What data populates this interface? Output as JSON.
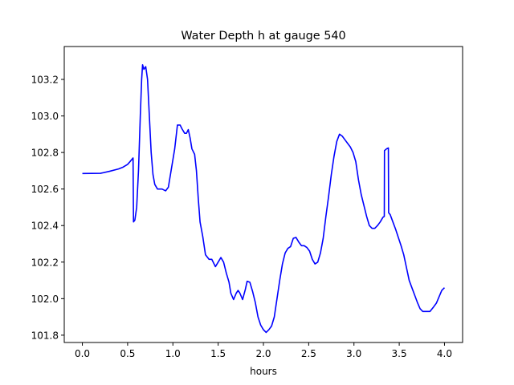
{
  "chart_data": {
    "type": "line",
    "title": "Water Depth h at gauge 540",
    "xlabel": "hours",
    "ylabel": "",
    "xlim": [
      -0.2,
      4.2
    ],
    "ylim": [
      101.76,
      103.38
    ],
    "grid": false,
    "xticks": [
      0.0,
      0.5,
      1.0,
      1.5,
      2.0,
      2.5,
      3.0,
      3.5,
      4.0
    ],
    "xtick_labels": [
      "0.0",
      "0.5",
      "1.0",
      "1.5",
      "2.0",
      "2.5",
      "3.0",
      "3.5",
      "4.0"
    ],
    "yticks": [
      101.8,
      102.0,
      102.2,
      102.4,
      102.6,
      102.8,
      103.0,
      103.2
    ],
    "ytick_labels": [
      "101.8",
      "102.0",
      "102.2",
      "102.4",
      "102.6",
      "102.8",
      "103.0",
      "103.2"
    ],
    "line_color": "#0000ff",
    "series": [
      {
        "points": [
          [
            0.0,
            102.685
          ],
          [
            0.2,
            102.686
          ],
          [
            0.3,
            102.697
          ],
          [
            0.4,
            102.71
          ],
          [
            0.45,
            102.72
          ],
          [
            0.5,
            102.735
          ],
          [
            0.53,
            102.752
          ],
          [
            0.56,
            102.77
          ],
          [
            0.565,
            102.42
          ],
          [
            0.58,
            102.43
          ],
          [
            0.6,
            102.5
          ],
          [
            0.62,
            102.7
          ],
          [
            0.64,
            103.0
          ],
          [
            0.655,
            103.2
          ],
          [
            0.665,
            103.28
          ],
          [
            0.68,
            103.255
          ],
          [
            0.7,
            103.27
          ],
          [
            0.72,
            103.2
          ],
          [
            0.74,
            103.0
          ],
          [
            0.76,
            102.8
          ],
          [
            0.78,
            102.68
          ],
          [
            0.8,
            102.625
          ],
          [
            0.83,
            102.6
          ],
          [
            0.88,
            102.6
          ],
          [
            0.92,
            102.59
          ],
          [
            0.95,
            102.61
          ],
          [
            0.98,
            102.7
          ],
          [
            1.02,
            102.82
          ],
          [
            1.05,
            102.95
          ],
          [
            1.08,
            102.95
          ],
          [
            1.1,
            102.93
          ],
          [
            1.13,
            102.905
          ],
          [
            1.15,
            102.905
          ],
          [
            1.17,
            102.925
          ],
          [
            1.19,
            102.88
          ],
          [
            1.21,
            102.82
          ],
          [
            1.24,
            102.79
          ],
          [
            1.26,
            102.7
          ],
          [
            1.28,
            102.55
          ],
          [
            1.3,
            102.42
          ],
          [
            1.33,
            102.34
          ],
          [
            1.36,
            102.24
          ],
          [
            1.4,
            102.215
          ],
          [
            1.43,
            102.215
          ],
          [
            1.47,
            102.175
          ],
          [
            1.5,
            102.2
          ],
          [
            1.53,
            102.225
          ],
          [
            1.56,
            102.2
          ],
          [
            1.59,
            102.14
          ],
          [
            1.62,
            102.09
          ],
          [
            1.64,
            102.03
          ],
          [
            1.67,
            101.995
          ],
          [
            1.7,
            102.03
          ],
          [
            1.72,
            102.045
          ],
          [
            1.74,
            102.03
          ],
          [
            1.77,
            101.995
          ],
          [
            1.8,
            102.05
          ],
          [
            1.82,
            102.095
          ],
          [
            1.85,
            102.09
          ],
          [
            1.88,
            102.04
          ],
          [
            1.91,
            101.98
          ],
          [
            1.94,
            101.9
          ],
          [
            1.97,
            101.855
          ],
          [
            2.0,
            101.83
          ],
          [
            2.03,
            101.815
          ],
          [
            2.06,
            101.83
          ],
          [
            2.09,
            101.85
          ],
          [
            2.12,
            101.9
          ],
          [
            2.15,
            102.0
          ],
          [
            2.18,
            102.1
          ],
          [
            2.21,
            102.19
          ],
          [
            2.24,
            102.25
          ],
          [
            2.27,
            102.275
          ],
          [
            2.3,
            102.285
          ],
          [
            2.33,
            102.33
          ],
          [
            2.36,
            102.335
          ],
          [
            2.39,
            102.31
          ],
          [
            2.42,
            102.29
          ],
          [
            2.45,
            102.29
          ],
          [
            2.48,
            102.28
          ],
          [
            2.51,
            102.26
          ],
          [
            2.54,
            102.215
          ],
          [
            2.57,
            102.19
          ],
          [
            2.6,
            102.2
          ],
          [
            2.63,
            102.25
          ],
          [
            2.66,
            102.33
          ],
          [
            2.69,
            102.45
          ],
          [
            2.72,
            102.56
          ],
          [
            2.75,
            102.68
          ],
          [
            2.78,
            102.78
          ],
          [
            2.81,
            102.86
          ],
          [
            2.84,
            102.9
          ],
          [
            2.87,
            102.89
          ],
          [
            2.9,
            102.87
          ],
          [
            2.93,
            102.85
          ],
          [
            2.96,
            102.83
          ],
          [
            2.99,
            102.8
          ],
          [
            3.02,
            102.75
          ],
          [
            3.05,
            102.65
          ],
          [
            3.08,
            102.57
          ],
          [
            3.11,
            102.51
          ],
          [
            3.14,
            102.45
          ],
          [
            3.17,
            102.4
          ],
          [
            3.2,
            102.385
          ],
          [
            3.23,
            102.385
          ],
          [
            3.26,
            102.4
          ],
          [
            3.29,
            102.42
          ],
          [
            3.32,
            102.445
          ],
          [
            3.335,
            102.45
          ],
          [
            3.337,
            102.81
          ],
          [
            3.36,
            102.82
          ],
          [
            3.38,
            102.825
          ],
          [
            3.383,
            102.47
          ],
          [
            3.4,
            102.46
          ],
          [
            3.43,
            102.42
          ],
          [
            3.46,
            102.38
          ],
          [
            3.49,
            102.335
          ],
          [
            3.52,
            102.29
          ],
          [
            3.55,
            102.24
          ],
          [
            3.58,
            102.17
          ],
          [
            3.61,
            102.1
          ],
          [
            3.64,
            102.06
          ],
          [
            3.67,
            102.02
          ],
          [
            3.7,
            101.98
          ],
          [
            3.73,
            101.945
          ],
          [
            3.76,
            101.93
          ],
          [
            3.8,
            101.93
          ],
          [
            3.84,
            101.93
          ],
          [
            3.88,
            101.955
          ],
          [
            3.91,
            101.975
          ],
          [
            3.94,
            102.01
          ],
          [
            3.97,
            102.045
          ],
          [
            4.0,
            102.06
          ]
        ]
      }
    ]
  }
}
